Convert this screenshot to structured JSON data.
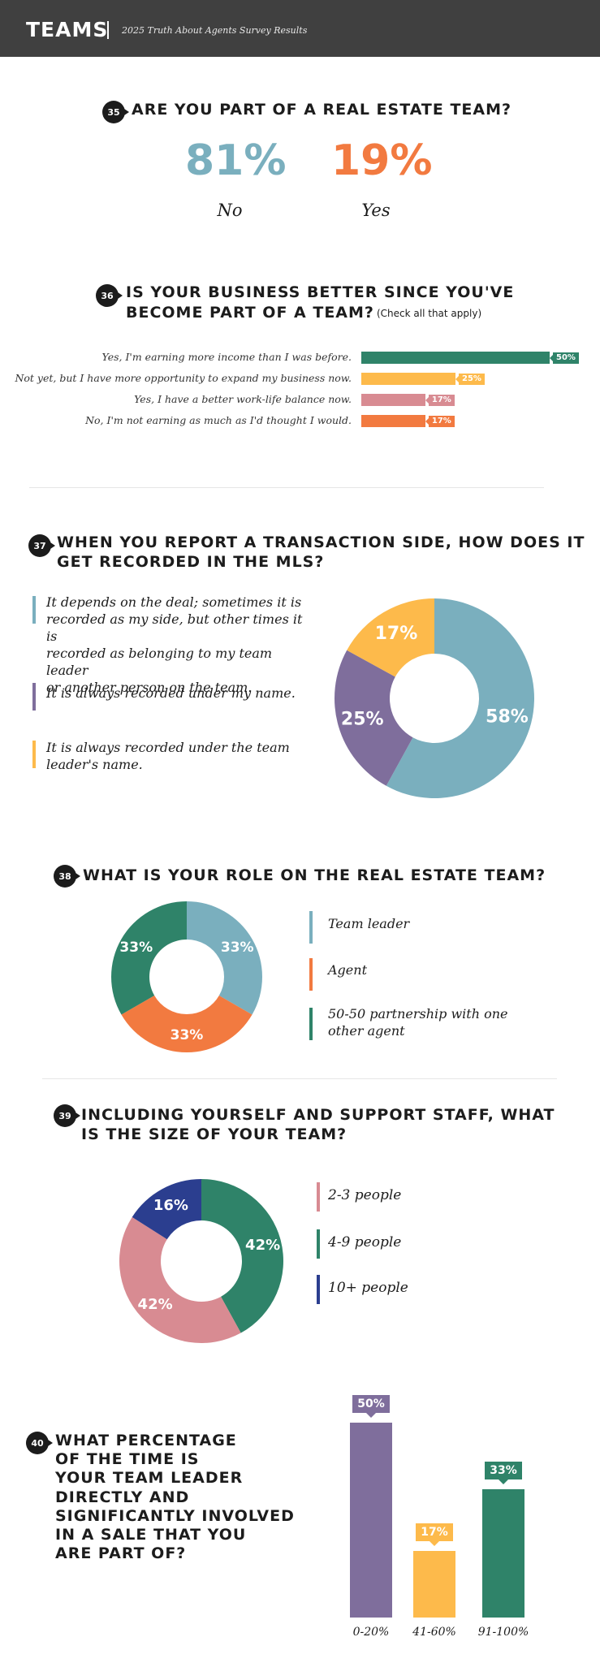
{
  "header": {
    "title": "TEAMS",
    "subtitle": "2025 Truth About Agents Survey Results"
  },
  "colors": {
    "teal": "#7aafbe",
    "orange": "#f27a40",
    "green": "#2f8369",
    "yellow": "#fdba4b",
    "pink": "#d88b92",
    "purple": "#7f6e9c",
    "navy": "#2b3e8f"
  },
  "q35": {
    "number": "35",
    "title": "ARE YOU PART OF A REAL ESTATE TEAM?",
    "no_pct": "81%",
    "no_label": "No",
    "yes_pct": "19%",
    "yes_label": "Yes"
  },
  "q36": {
    "number": "36",
    "title_line1": "IS YOUR BUSINESS BETTER SINCE YOU'VE",
    "title_line2": "BECOME PART OF A TEAM?",
    "note": "(Check all that apply)"
  },
  "q37": {
    "number": "37",
    "title_line1": "WHEN YOU REPORT A TRANSACTION SIDE, HOW DOES IT",
    "title_line2": "GET RECORDED IN THE MLS?",
    "legend": [
      [
        "It depends on the deal; sometimes it is",
        "recorded as my side, but other times it is",
        "recorded as belonging to my team leader",
        "or another person on the team."
      ],
      [
        "It is always recorded under my name."
      ],
      [
        "It is always recorded under the team",
        "leader's name."
      ]
    ]
  },
  "q38": {
    "number": "38",
    "title": "WHAT IS YOUR ROLE ON THE REAL ESTATE TEAM?",
    "legend": [
      [
        "Team leader"
      ],
      [
        "Agent"
      ],
      [
        "50-50 partnership with one",
        "other agent"
      ]
    ]
  },
  "q39": {
    "number": "39",
    "title_line1": "INCLUDING YOURSELF AND SUPPORT STAFF, WHAT",
    "title_line2": "IS THE SIZE OF YOUR TEAM?",
    "legend": [
      "2-3 people",
      "4-9 people",
      "10+ people"
    ]
  },
  "q40": {
    "number": "40",
    "title_lines": [
      "WHAT PERCENTAGE",
      "OF THE TIME IS",
      "YOUR TEAM LEADER",
      "DIRECTLY AND",
      "SIGNIFICANTLY INVOLVED",
      "IN A SALE THAT YOU",
      "ARE PART OF?"
    ]
  },
  "chart_data": [
    {
      "type": "bar",
      "orientation": "horizontal",
      "categories": [
        "Yes, I'm earning more income than I was before.",
        "Not yet, but I have more opportunity to expand my business now.",
        "Yes, I have a better work-life balance now.",
        "No, I'm not earning as much as I'd thought I would."
      ],
      "values": [
        50,
        25,
        17,
        17
      ],
      "labels": [
        "50%",
        "25%",
        "17%",
        "17%"
      ],
      "colors": [
        "#2f8369",
        "#fdba4b",
        "#d88b92",
        "#f27a40"
      ],
      "xlim": [
        0,
        50
      ]
    },
    {
      "type": "pie",
      "donut": true,
      "categories": [
        "It depends on the deal; sometimes it is recorded as my side, but other times it is recorded as belonging to my team leader or another person on the team.",
        "It is always recorded under my name.",
        "It is always recorded under the team leader's name."
      ],
      "values": [
        58,
        25,
        17
      ],
      "labels": [
        "58%",
        "25%",
        "17%"
      ],
      "colors": [
        "#7aafbe",
        "#7f6e9c",
        "#fdba4b"
      ]
    },
    {
      "type": "pie",
      "donut": true,
      "categories": [
        "Team leader",
        "Agent",
        "50-50 partnership with one other agent"
      ],
      "values": [
        33,
        33,
        33
      ],
      "labels": [
        "33%",
        "33%",
        "33%"
      ],
      "colors": [
        "#7aafbe",
        "#f27a40",
        "#2f8369"
      ]
    },
    {
      "type": "pie",
      "donut": true,
      "categories": [
        "4-9 people",
        "2-3 people",
        "10+ people"
      ],
      "values": [
        42,
        42,
        16
      ],
      "labels": [
        "42%",
        "42%",
        "16%"
      ],
      "colors": [
        "#2f8369",
        "#d88b92",
        "#2b3e8f"
      ]
    },
    {
      "type": "bar",
      "categories": [
        "0-20%",
        "41-60%",
        "91-100%"
      ],
      "values": [
        50,
        17,
        33
      ],
      "labels": [
        "50%",
        "17%",
        "33%"
      ],
      "colors": [
        "#7f6e9c",
        "#fdba4b",
        "#2f8369"
      ],
      "ylim": [
        0,
        50
      ]
    }
  ]
}
